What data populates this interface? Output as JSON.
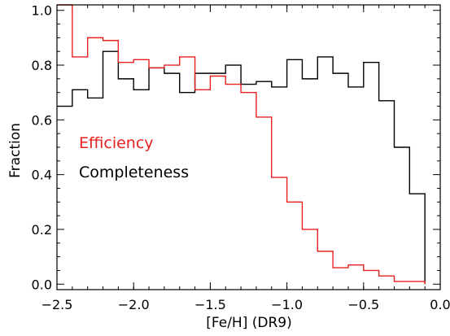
{
  "chart_data": {
    "type": "line",
    "step": true,
    "xlabel": "[Fe/H] (DR9)",
    "ylabel": "Fraction",
    "xlim": [
      -2.5,
      0.0
    ],
    "ylim": [
      -0.02,
      1.02
    ],
    "bin_width": 0.1,
    "xticks": [
      -2.5,
      -2.0,
      -1.5,
      -1.0,
      -0.5,
      0.0
    ],
    "xtick_labels": [
      "−2.5",
      "−2.0",
      "−1.5",
      "−1.0",
      "−0.5",
      "0.0"
    ],
    "yticks": [
      0.0,
      0.2,
      0.4,
      0.6,
      0.8,
      1.0
    ],
    "ytick_labels": [
      "0.0",
      "0.2",
      "0.4",
      "0.6",
      "0.8",
      "1.0"
    ],
    "grid": false,
    "series": [
      {
        "name": "Efficiency",
        "color": "#e8201f",
        "x": [
          -2.45,
          -2.35,
          -2.25,
          -2.15,
          -2.05,
          -1.95,
          -1.85,
          -1.75,
          -1.65,
          -1.55,
          -1.45,
          -1.35,
          -1.25,
          -1.15,
          -1.05,
          -0.95,
          -0.85,
          -0.75,
          -0.65,
          -0.55,
          -0.45,
          -0.35,
          -0.25,
          -0.15
        ],
        "values": [
          1.02,
          0.83,
          0.9,
          0.89,
          0.81,
          0.82,
          0.79,
          0.8,
          0.83,
          0.71,
          0.76,
          0.73,
          0.7,
          0.61,
          0.39,
          0.3,
          0.2,
          0.12,
          0.06,
          0.07,
          0.05,
          0.03,
          0.01,
          0.01
        ]
      },
      {
        "name": "Completeness",
        "color": "#000000",
        "x": [
          -2.45,
          -2.35,
          -2.25,
          -2.15,
          -2.05,
          -1.95,
          -1.85,
          -1.75,
          -1.65,
          -1.55,
          -1.45,
          -1.35,
          -1.25,
          -1.15,
          -1.05,
          -0.95,
          -0.85,
          -0.75,
          -0.65,
          -0.55,
          -0.45,
          -0.35,
          -0.25,
          -0.15
        ],
        "values": [
          0.65,
          0.71,
          0.68,
          0.85,
          0.75,
          0.71,
          0.79,
          0.77,
          0.7,
          0.77,
          0.77,
          0.8,
          0.73,
          0.74,
          0.72,
          0.82,
          0.75,
          0.83,
          0.77,
          0.72,
          0.81,
          0.67,
          0.5,
          0.33
        ]
      }
    ]
  }
}
